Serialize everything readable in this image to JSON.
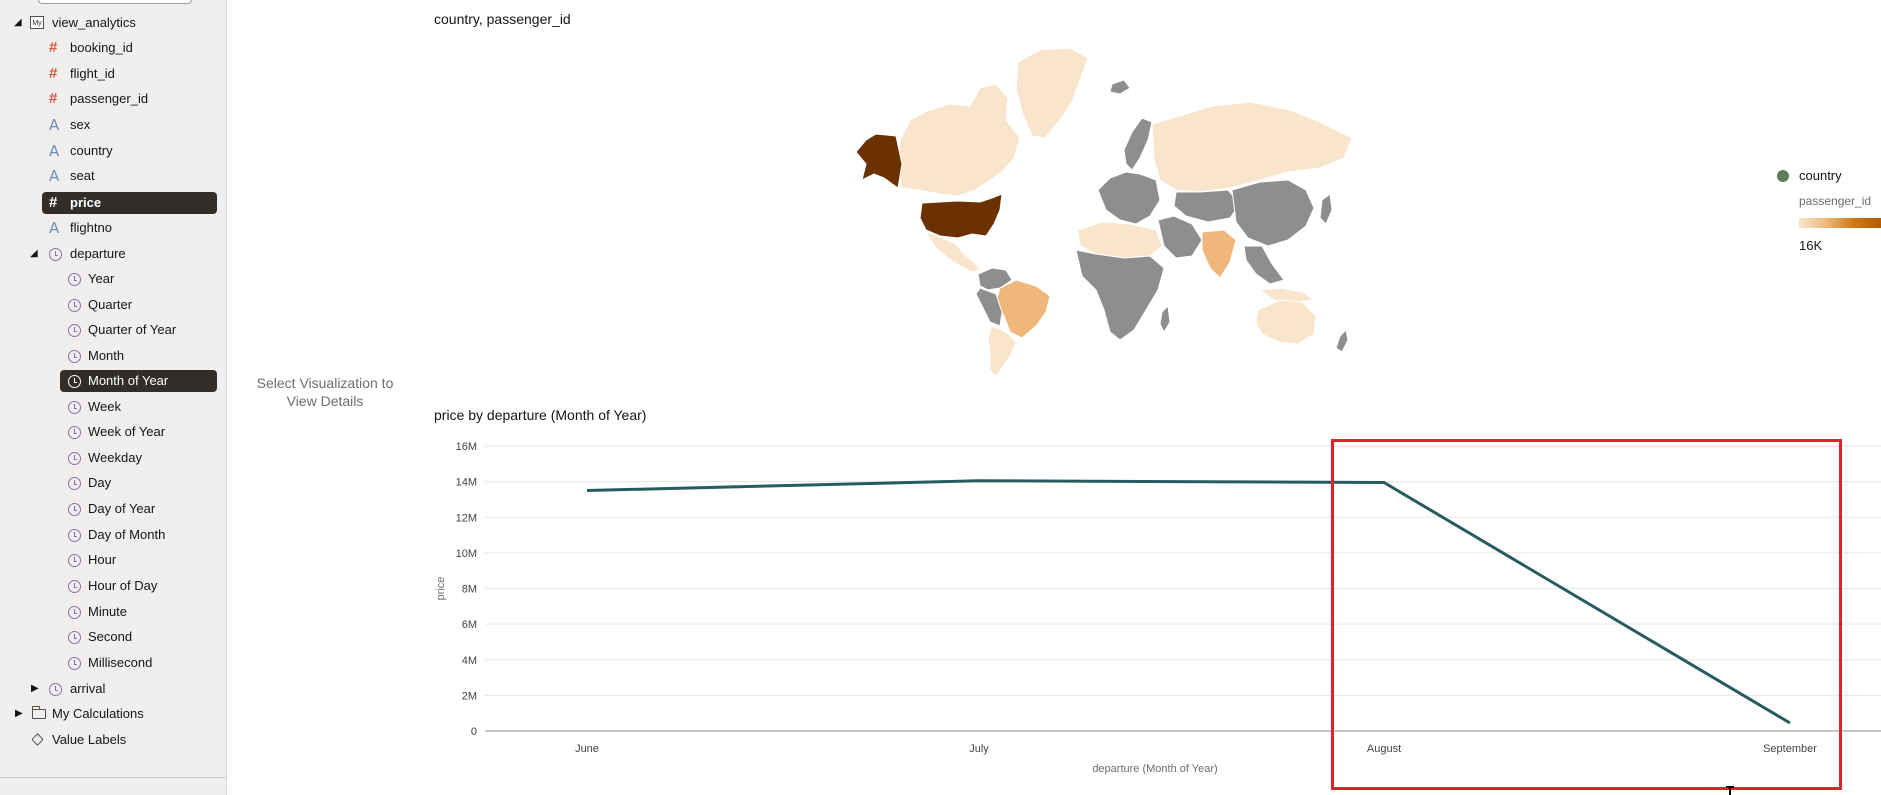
{
  "sidebar": {
    "root": {
      "label": "view_analytics",
      "icon": "database-icon",
      "badge": "My"
    },
    "fields": [
      {
        "label": "booking_id",
        "type": "number",
        "icon": "hash-icon"
      },
      {
        "label": "flight_id",
        "type": "number",
        "icon": "hash-icon"
      },
      {
        "label": "passenger_id",
        "type": "number",
        "icon": "hash-icon"
      },
      {
        "label": "sex",
        "type": "text",
        "icon": "text-attribute-icon"
      },
      {
        "label": "country",
        "type": "text",
        "icon": "text-attribute-icon"
      },
      {
        "label": "seat",
        "type": "text",
        "icon": "text-attribute-icon"
      },
      {
        "label": "price",
        "type": "number",
        "icon": "hash-icon",
        "selected": true
      },
      {
        "label": "flightno",
        "type": "text",
        "icon": "text-attribute-icon"
      }
    ],
    "departure": {
      "label": "departure",
      "icon": "clock-icon",
      "children": [
        "Year",
        "Quarter",
        "Quarter of Year",
        "Month",
        "Month of Year",
        "Week",
        "Week of Year",
        "Weekday",
        "Day",
        "Day of Year",
        "Day of Month",
        "Hour",
        "Hour of Day",
        "Minute",
        "Second",
        "Millisecond"
      ],
      "selected_child": "Month of Year"
    },
    "arrival": {
      "label": "arrival",
      "icon": "clock-icon"
    },
    "my_calculations": {
      "label": "My Calculations",
      "icon": "folder-icon"
    },
    "value_labels": {
      "label": "Value Labels",
      "icon": "tag-icon"
    }
  },
  "details_panel": {
    "line1": "Select Visualization to",
    "line2": "View Details"
  },
  "map_viz": {
    "title": "country, passenger_id",
    "legend": {
      "dimension_label": "country",
      "measure_label": "passenger_id",
      "max_label": "16K"
    },
    "colors": {
      "no_data": "#8e8e8e",
      "low": "#f8e5cc",
      "mid": "#f0b77a",
      "high": "#6b3100"
    }
  },
  "line_viz": {
    "title": "price by departure (Month of Year)"
  },
  "chart_data": {
    "type": "line",
    "title": "price by departure (Month of Year)",
    "xlabel": "departure (Month of Year)",
    "ylabel": "price",
    "categories": [
      "June",
      "July",
      "August",
      "September"
    ],
    "series": [
      {
        "values": [
          13500000,
          14050000,
          13950000,
          450000
        ]
      }
    ],
    "ylim": [
      0,
      16000000
    ],
    "yticks": [
      {
        "value": 0,
        "label": "0"
      },
      {
        "value": 2000000,
        "label": "2M"
      },
      {
        "value": 4000000,
        "label": "4M"
      },
      {
        "value": 6000000,
        "label": "6M"
      },
      {
        "value": 8000000,
        "label": "8M"
      },
      {
        "value": 10000000,
        "label": "10M"
      },
      {
        "value": 12000000,
        "label": "12M"
      },
      {
        "value": 14000000,
        "label": "14M"
      },
      {
        "value": 16000000,
        "label": "16M"
      }
    ],
    "line_color": "#265b5f",
    "grid": true
  }
}
